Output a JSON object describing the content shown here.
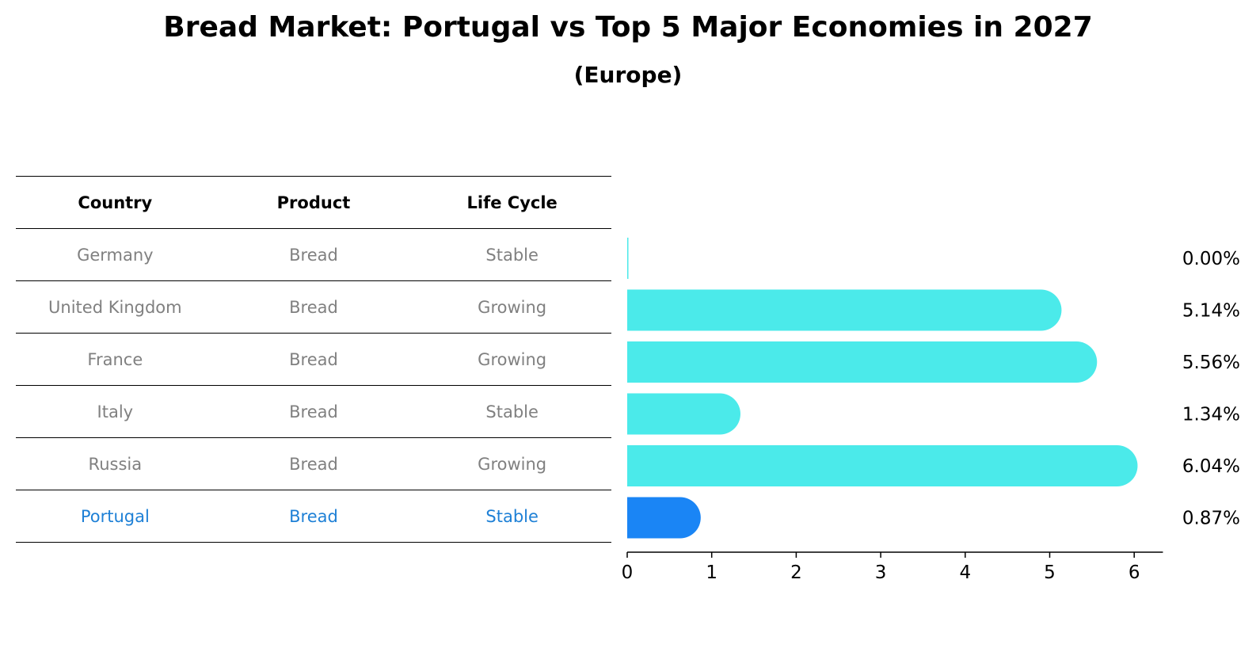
{
  "title": "Bread Market: Portugal vs Top 5 Major Economies in 2027",
  "subtitle": "(Europe)",
  "table": {
    "headers": [
      "Country",
      "Product",
      "Life Cycle"
    ],
    "rows": [
      {
        "country": "Germany",
        "product": "Bread",
        "life_cycle": "Stable",
        "highlight": false
      },
      {
        "country": "United Kingdom",
        "product": "Bread",
        "life_cycle": "Growing",
        "highlight": false
      },
      {
        "country": "France",
        "product": "Bread",
        "life_cycle": "Growing",
        "highlight": false
      },
      {
        "country": "Italy",
        "product": "Bread",
        "life_cycle": "Stable",
        "highlight": false
      },
      {
        "country": "Russia",
        "product": "Bread",
        "life_cycle": "Growing",
        "highlight": false
      },
      {
        "country": "Portugal",
        "product": "Bread",
        "life_cycle": "Stable",
        "highlight": true
      }
    ]
  },
  "colors": {
    "bar": "#4beaea",
    "highlight_bar": "#1a85f5",
    "highlight_text": "#1e80d6",
    "muted_text": "#808080"
  },
  "chart_data": {
    "type": "bar",
    "orientation": "horizontal",
    "categories": [
      "Germany",
      "United Kingdom",
      "France",
      "Italy",
      "Russia",
      "Portugal"
    ],
    "values": [
      0.0,
      5.14,
      5.56,
      1.34,
      6.04,
      0.87
    ],
    "value_labels": [
      "0.00%",
      "5.14%",
      "5.56%",
      "1.34%",
      "6.04%",
      "0.87%"
    ],
    "highlight_index": 5,
    "xticks": [
      "0",
      "1",
      "2",
      "3",
      "4",
      "5",
      "6"
    ],
    "xlim": [
      0,
      6.34
    ],
    "xlabel": "",
    "ylabel": ""
  }
}
